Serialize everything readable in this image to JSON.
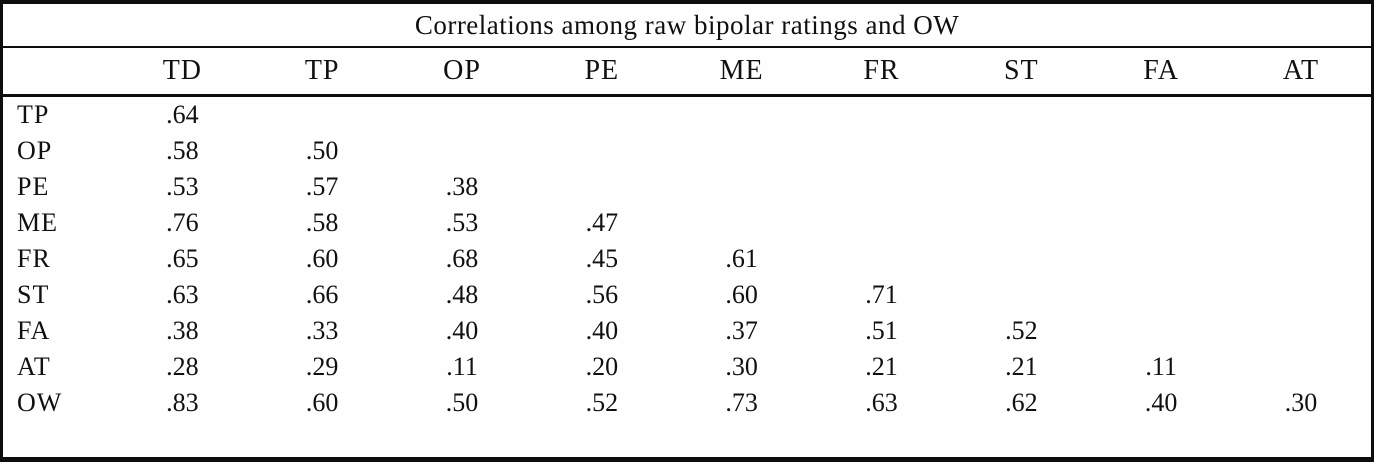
{
  "table": {
    "title": "Correlations among raw bipolar ratings and OW",
    "columns": [
      "",
      "TD",
      "TP",
      "OP",
      "PE",
      "ME",
      "FR",
      "ST",
      "FA",
      "AT"
    ],
    "rows": [
      {
        "label": "TP",
        "values": [
          ".64"
        ]
      },
      {
        "label": "OP",
        "values": [
          ".58",
          ".50"
        ]
      },
      {
        "label": "PE",
        "values": [
          ".53",
          ".57",
          ".38"
        ]
      },
      {
        "label": "ME",
        "values": [
          ".76",
          ".58",
          ".53",
          ".47"
        ]
      },
      {
        "label": "FR",
        "values": [
          ".65",
          ".60",
          ".68",
          ".45",
          ".61"
        ]
      },
      {
        "label": "ST",
        "values": [
          ".63",
          ".66",
          ".48",
          ".56",
          ".60",
          ".71"
        ]
      },
      {
        "label": "FA",
        "values": [
          ".38",
          ".33",
          ".40",
          ".40",
          ".37",
          ".51",
          ".52"
        ]
      },
      {
        "label": "AT",
        "values": [
          ".28",
          ".29",
          ".11",
          ".20",
          ".30",
          ".21",
          ".21",
          ".11"
        ]
      },
      {
        "label": "OW",
        "values": [
          ".83",
          ".60",
          ".50",
          ".52",
          ".73",
          ".63",
          ".62",
          ".40",
          ".30"
        ]
      }
    ]
  },
  "chart_data": {
    "type": "table",
    "title": "Correlations among raw bipolar ratings and OW",
    "columns": [
      "TD",
      "TP",
      "OP",
      "PE",
      "ME",
      "FR",
      "ST",
      "FA",
      "AT"
    ],
    "row_labels": [
      "TP",
      "OP",
      "PE",
      "ME",
      "FR",
      "ST",
      "FA",
      "AT",
      "OW"
    ],
    "values": [
      [
        0.64
      ],
      [
        0.58,
        0.5
      ],
      [
        0.53,
        0.57,
        0.38
      ],
      [
        0.76,
        0.58,
        0.53,
        0.47
      ],
      [
        0.65,
        0.6,
        0.68,
        0.45,
        0.61
      ],
      [
        0.63,
        0.66,
        0.48,
        0.56,
        0.6,
        0.71
      ],
      [
        0.38,
        0.33,
        0.4,
        0.4,
        0.37,
        0.51,
        0.52
      ],
      [
        0.28,
        0.29,
        0.11,
        0.2,
        0.3,
        0.21,
        0.21,
        0.11
      ],
      [
        0.83,
        0.6,
        0.5,
        0.52,
        0.73,
        0.63,
        0.62,
        0.4,
        0.3
      ]
    ]
  },
  "colors": {
    "border": "#0d0d0d",
    "text": "#101010",
    "background": "#fefefe"
  }
}
